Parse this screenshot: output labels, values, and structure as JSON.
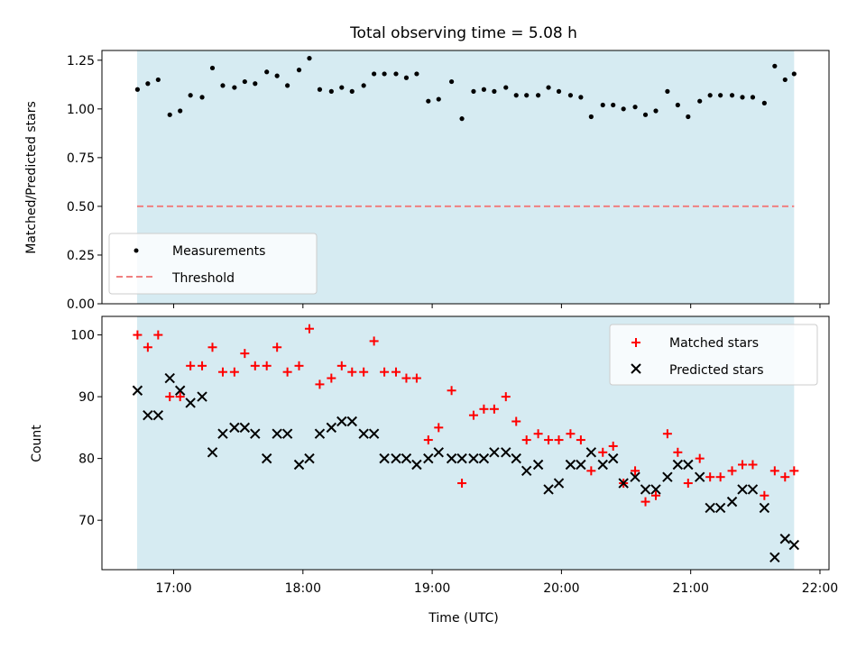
{
  "title": "Total observing time = 5.08 h",
  "chart_data": [
    {
      "type": "scatter",
      "ylabel": "Matched/Predicted stars",
      "x_unit": "hours UTC",
      "xlim": [
        16.445,
        22.07
      ],
      "ylim": [
        0,
        1.3
      ],
      "yticks": [
        0,
        0.25,
        0.5,
        0.75,
        1.0,
        1.25
      ],
      "ytick_labels": [
        "0.00",
        "0.25",
        "0.50",
        "0.75",
        "1.00",
        "1.25"
      ],
      "observing_window": [
        16.717,
        21.8
      ],
      "threshold": 0.5,
      "legend": {
        "location": "lower-left",
        "entries": [
          "Measurements",
          "Threshold"
        ]
      },
      "series": [
        {
          "name": "Measurements",
          "x": [
            16.72,
            16.8,
            16.88,
            16.97,
            17.05,
            17.13,
            17.22,
            17.3,
            17.38,
            17.47,
            17.55,
            17.63,
            17.72,
            17.8,
            17.88,
            17.97,
            18.05,
            18.13,
            18.22,
            18.3,
            18.38,
            18.47,
            18.55,
            18.63,
            18.72,
            18.8,
            18.88,
            18.97,
            19.05,
            19.15,
            19.23,
            19.32,
            19.4,
            19.48,
            19.57,
            19.65,
            19.73,
            19.82,
            19.9,
            19.98,
            20.07,
            20.15,
            20.23,
            20.32,
            20.4,
            20.48,
            20.57,
            20.65,
            20.73,
            20.82,
            20.9,
            20.98,
            21.07,
            21.15,
            21.23,
            21.32,
            21.4,
            21.48,
            21.57,
            21.65,
            21.73,
            21.8
          ],
          "y": [
            1.1,
            1.13,
            1.15,
            0.97,
            0.99,
            1.07,
            1.06,
            1.21,
            1.12,
            1.11,
            1.14,
            1.13,
            1.19,
            1.17,
            1.12,
            1.2,
            1.26,
            1.1,
            1.09,
            1.11,
            1.09,
            1.12,
            1.18,
            1.18,
            1.18,
            1.16,
            1.18,
            1.04,
            1.05,
            1.14,
            0.95,
            1.09,
            1.1,
            1.09,
            1.11,
            1.07,
            1.07,
            1.07,
            1.11,
            1.09,
            1.07,
            1.06,
            0.96,
            1.02,
            1.02,
            1.0,
            1.01,
            0.97,
            0.99,
            1.09,
            1.02,
            0.96,
            1.04,
            1.07,
            1.07,
            1.07,
            1.06,
            1.06,
            1.03,
            1.22,
            1.15,
            1.18
          ]
        },
        {
          "name": "Threshold",
          "x": [
            16.717,
            21.8
          ],
          "y": [
            0.5,
            0.5
          ]
        }
      ]
    },
    {
      "type": "scatter",
      "ylabel": "Count",
      "xlabel": "Time (UTC)",
      "xlim": [
        16.445,
        22.07
      ],
      "xticks": [
        17,
        18,
        19,
        20,
        21,
        22
      ],
      "xtick_labels": [
        "17:00",
        "18:00",
        "19:00",
        "20:00",
        "21:00",
        "22:00"
      ],
      "ylim": [
        62,
        103
      ],
      "yticks": [
        70,
        80,
        90,
        100
      ],
      "ytick_labels": [
        "70",
        "80",
        "90",
        "100"
      ],
      "observing_window": [
        16.717,
        21.8
      ],
      "legend": {
        "location": "top-right",
        "entries": [
          "Matched stars",
          "Predicted stars"
        ]
      },
      "series": [
        {
          "name": "Matched stars",
          "x": [
            16.72,
            16.8,
            16.88,
            16.97,
            17.05,
            17.13,
            17.22,
            17.3,
            17.38,
            17.47,
            17.55,
            17.63,
            17.72,
            17.8,
            17.88,
            17.97,
            18.05,
            18.13,
            18.22,
            18.3,
            18.38,
            18.47,
            18.55,
            18.63,
            18.72,
            18.8,
            18.88,
            18.97,
            19.05,
            19.15,
            19.23,
            19.32,
            19.4,
            19.48,
            19.57,
            19.65,
            19.73,
            19.82,
            19.9,
            19.98,
            20.07,
            20.15,
            20.23,
            20.32,
            20.4,
            20.48,
            20.57,
            20.65,
            20.73,
            20.82,
            20.9,
            20.98,
            21.07,
            21.15,
            21.23,
            21.32,
            21.4,
            21.48,
            21.57,
            21.65,
            21.73,
            21.8
          ],
          "y": [
            100,
            98,
            100,
            90,
            90,
            95,
            95,
            98,
            94,
            94,
            97,
            95,
            95,
            98,
            94,
            95,
            101,
            92,
            93,
            95,
            94,
            94,
            99,
            94,
            94,
            93,
            93,
            83,
            85,
            91,
            76,
            87,
            88,
            88,
            90,
            86,
            83,
            84,
            83,
            83,
            84,
            83,
            78,
            81,
            82,
            76,
            78,
            73,
            74,
            84,
            81,
            76,
            80,
            77,
            77,
            78,
            79,
            79,
            74,
            78,
            77,
            78
          ]
        },
        {
          "name": "Predicted stars",
          "x": [
            16.72,
            16.8,
            16.88,
            16.97,
            17.05,
            17.13,
            17.22,
            17.3,
            17.38,
            17.47,
            17.55,
            17.63,
            17.72,
            17.8,
            17.88,
            17.97,
            18.05,
            18.13,
            18.22,
            18.3,
            18.38,
            18.47,
            18.55,
            18.63,
            18.72,
            18.8,
            18.88,
            18.97,
            19.05,
            19.15,
            19.23,
            19.32,
            19.4,
            19.48,
            19.57,
            19.65,
            19.73,
            19.82,
            19.9,
            19.98,
            20.07,
            20.15,
            20.23,
            20.32,
            20.4,
            20.48,
            20.57,
            20.65,
            20.73,
            20.82,
            20.9,
            20.98,
            21.07,
            21.15,
            21.23,
            21.32,
            21.4,
            21.48,
            21.57,
            21.65,
            21.73,
            21.8
          ],
          "y": [
            91,
            87,
            87,
            93,
            91,
            89,
            90,
            81,
            84,
            85,
            85,
            84,
            80,
            84,
            84,
            79,
            80,
            84,
            85,
            86,
            86,
            84,
            84,
            80,
            80,
            80,
            79,
            80,
            81,
            80,
            80,
            80,
            80,
            81,
            81,
            80,
            78,
            79,
            75,
            76,
            79,
            79,
            81,
            79,
            80,
            76,
            77,
            75,
            75,
            77,
            79,
            79,
            77,
            72,
            72,
            73,
            75,
            75,
            72,
            64,
            67,
            66
          ]
        }
      ]
    }
  ],
  "colors": {
    "shade": "#add8e6",
    "matched": "#ff0000",
    "predicted": "#000000",
    "measurement": "#000000",
    "threshold": "#f08080"
  }
}
